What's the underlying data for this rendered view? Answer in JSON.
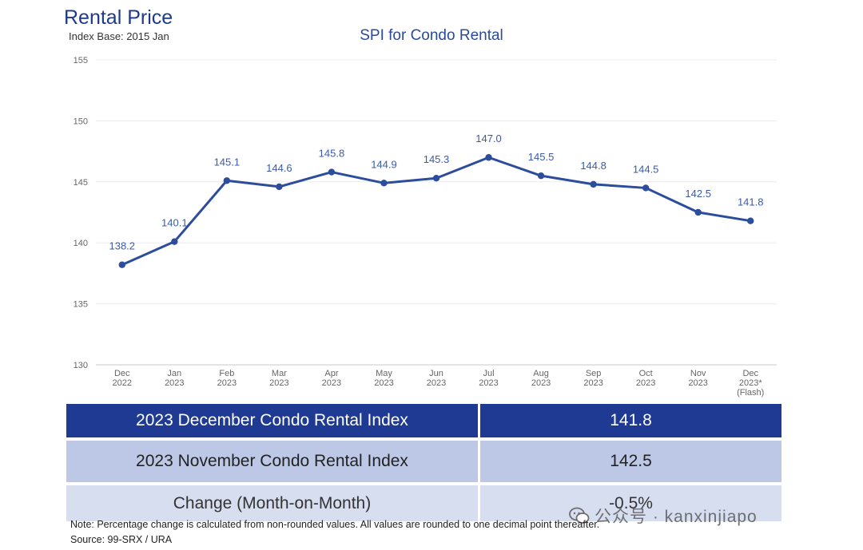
{
  "header": {
    "title": "Rental Price",
    "subtitle": "Index Base: 2015 Jan"
  },
  "chart_data": {
    "type": "line",
    "title": "SPI for Condo Rental",
    "categories": [
      [
        "Dec",
        "2022"
      ],
      [
        "Jan",
        "2023"
      ],
      [
        "Feb",
        "2023"
      ],
      [
        "Mar",
        "2023"
      ],
      [
        "Apr",
        "2023"
      ],
      [
        "May",
        "2023"
      ],
      [
        "Jun",
        "2023"
      ],
      [
        "Jul",
        "2023"
      ],
      [
        "Aug",
        "2023"
      ],
      [
        "Sep",
        "2023"
      ],
      [
        "Oct",
        "2023"
      ],
      [
        "Nov",
        "2023"
      ],
      [
        "Dec",
        "2023*",
        "(Flash)"
      ]
    ],
    "values": [
      138.2,
      140.1,
      145.1,
      144.6,
      145.8,
      144.9,
      145.3,
      147.0,
      145.5,
      144.8,
      144.5,
      142.5,
      141.8
    ],
    "data_labels": [
      "138.2",
      "140.1",
      "145.1",
      "144.6",
      "145.8",
      "144.9",
      "145.3",
      "147.0",
      "145.5",
      "144.8",
      "144.5",
      "142.5",
      "141.8"
    ],
    "ylim": [
      130,
      155
    ],
    "yticks": [
      130,
      135,
      140,
      145,
      150,
      155
    ],
    "grid": true,
    "line_color": "#2c4d9c",
    "label_color": "#3a5ba8"
  },
  "summary": {
    "rows": [
      {
        "label": "2023 December Condo Rental Index",
        "value": "141.8"
      },
      {
        "label": "2023 November Condo Rental Index",
        "value": "142.5"
      },
      {
        "label": "Change (Month-on-Month)",
        "value": "-0.5%"
      }
    ],
    "header_color": "#1f3a93",
    "negative_color": "#e02020"
  },
  "note": "Note: Percentage change is calculated from non-rounded values.  All values are rounded to one decimal point thereafter.",
  "source": "Source: 99-SRX / URA",
  "watermark": "公众号 · kanxinjiapo"
}
